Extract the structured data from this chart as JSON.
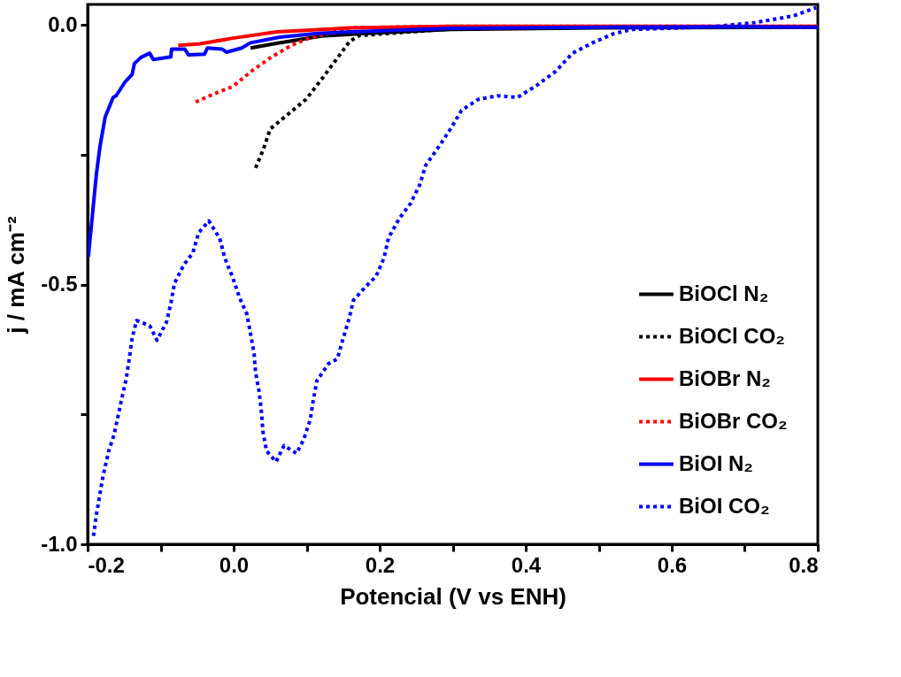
{
  "chart_data": {
    "type": "line",
    "xlabel": "Potencial (V vs ENH)",
    "ylabel": "j / mA cm⁻²",
    "xlim": [
      -0.2,
      0.8
    ],
    "ylim": [
      -1.0,
      0.04
    ],
    "xticks": [
      -0.2,
      {
        "value": -0.1,
        "label": null
      },
      {
        "value": 0,
        "label": "0.0"
      },
      {
        "value": 0.1,
        "label": null
      },
      0.2,
      {
        "value": 0.3,
        "label": null
      },
      0.4,
      {
        "value": 0.5,
        "label": null
      },
      0.6,
      {
        "value": 0.7,
        "label": null
      },
      0.8
    ],
    "yticks": [
      {
        "value": -1.0,
        "label": "-1.0"
      },
      {
        "value": -0.75,
        "label": null
      },
      -0.5,
      {
        "value": -0.25,
        "label": null
      },
      {
        "value": 0,
        "label": "0.0"
      }
    ],
    "grid": false,
    "legend": "bottom right",
    "marker": "none",
    "series": [
      {
        "name": "BiOCl  N₂",
        "color": "#000000",
        "line_style": "solid",
        "x": [
          0.023,
          0.055,
          0.12,
          0.181,
          0.3,
          0.5,
          0.8
        ],
        "values": [
          -0.044,
          -0.036,
          -0.021,
          -0.016,
          -0.008,
          -0.005,
          -0.004
        ]
      },
      {
        "name": "BiOCl  CO₂",
        "color": "#000000",
        "line_style": "dotted",
        "x": [
          0.03,
          0.041,
          0.05,
          0.074,
          0.099,
          0.12,
          0.139,
          0.159,
          0.172,
          0.3,
          0.5,
          0.8
        ],
        "values": [
          -0.275,
          -0.238,
          -0.2,
          -0.172,
          -0.143,
          -0.105,
          -0.069,
          -0.031,
          -0.02,
          -0.007,
          -0.004,
          -0.003
        ]
      },
      {
        "name": "BiOBr  N₂",
        "color": "#ff0000",
        "line_style": "solid",
        "x": [
          -0.076,
          -0.046,
          -0.001,
          0.059,
          0.16,
          0.3,
          0.8
        ],
        "values": [
          -0.039,
          -0.036,
          -0.025,
          -0.013,
          -0.005,
          -0.002,
          -0.002
        ]
      },
      {
        "name": "BiOBr CO₂",
        "color": "#ff0000",
        "line_style": "dotted",
        "x": [
          -0.052,
          -0.028,
          -0.001,
          0.024,
          0.051,
          0.079,
          0.103,
          0.16,
          0.3,
          0.8
        ],
        "values": [
          -0.148,
          -0.133,
          -0.118,
          -0.089,
          -0.062,
          -0.039,
          -0.025,
          -0.005,
          -0.002,
          -0.002
        ]
      },
      {
        "name": "BiOI N₂",
        "color": "#0000ff",
        "line_style": "solid",
        "x": [
          -0.199,
          -0.188,
          -0.183,
          -0.176,
          -0.165,
          -0.161,
          -0.149,
          -0.139,
          -0.136,
          -0.127,
          -0.115,
          -0.11,
          -0.086,
          -0.085,
          -0.067,
          -0.062,
          -0.04,
          -0.036,
          -0.016,
          -0.01,
          0.011,
          0.023,
          0.063,
          0.115,
          0.16,
          0.3,
          0.5,
          0.7,
          0.8
        ],
        "values": [
          -0.446,
          -0.287,
          -0.233,
          -0.177,
          -0.139,
          -0.136,
          -0.11,
          -0.095,
          -0.074,
          -0.062,
          -0.054,
          -0.066,
          -0.061,
          -0.046,
          -0.046,
          -0.057,
          -0.056,
          -0.044,
          -0.046,
          -0.052,
          -0.044,
          -0.034,
          -0.023,
          -0.016,
          -0.013,
          -0.006,
          -0.004,
          -0.003,
          -0.004
        ]
      },
      {
        "name": "BiOI CO₂",
        "color": "#0000ff",
        "line_style": "dotted",
        "x": [
          -0.192,
          -0.188,
          -0.179,
          -0.171,
          -0.164,
          -0.153,
          -0.147,
          -0.143,
          -0.139,
          -0.133,
          -0.115,
          -0.105,
          -0.092,
          -0.086,
          -0.081,
          -0.068,
          -0.056,
          -0.048,
          -0.034,
          -0.019,
          -0.012,
          -0.001,
          0.008,
          0.018,
          0.023,
          0.028,
          0.03,
          0.035,
          0.038,
          0.04,
          0.045,
          0.058,
          0.069,
          0.086,
          0.096,
          0.105,
          0.109,
          0.114,
          0.13,
          0.142,
          0.15,
          0.158,
          0.164,
          0.182,
          0.195,
          0.206,
          0.212,
          0.227,
          0.242,
          0.255,
          0.263,
          0.281,
          0.297,
          0.312,
          0.335,
          0.361,
          0.389,
          0.415,
          0.441,
          0.464,
          0.493,
          0.521,
          0.547,
          0.577,
          0.656,
          0.714,
          0.767,
          0.798
        ],
        "values": [
          -0.984,
          -0.943,
          -0.869,
          -0.82,
          -0.79,
          -0.718,
          -0.68,
          -0.643,
          -0.603,
          -0.569,
          -0.579,
          -0.607,
          -0.572,
          -0.536,
          -0.497,
          -0.461,
          -0.439,
          -0.4,
          -0.377,
          -0.411,
          -0.449,
          -0.487,
          -0.525,
          -0.556,
          -0.593,
          -0.633,
          -0.669,
          -0.707,
          -0.744,
          -0.782,
          -0.82,
          -0.841,
          -0.81,
          -0.825,
          -0.798,
          -0.759,
          -0.723,
          -0.685,
          -0.652,
          -0.643,
          -0.603,
          -0.566,
          -0.53,
          -0.502,
          -0.484,
          -0.448,
          -0.41,
          -0.372,
          -0.344,
          -0.307,
          -0.27,
          -0.234,
          -0.2,
          -0.164,
          -0.143,
          -0.136,
          -0.139,
          -0.116,
          -0.089,
          -0.054,
          -0.033,
          -0.016,
          -0.008,
          -0.007,
          -0.003,
          0.005,
          0.018,
          0.034
        ]
      }
    ]
  }
}
